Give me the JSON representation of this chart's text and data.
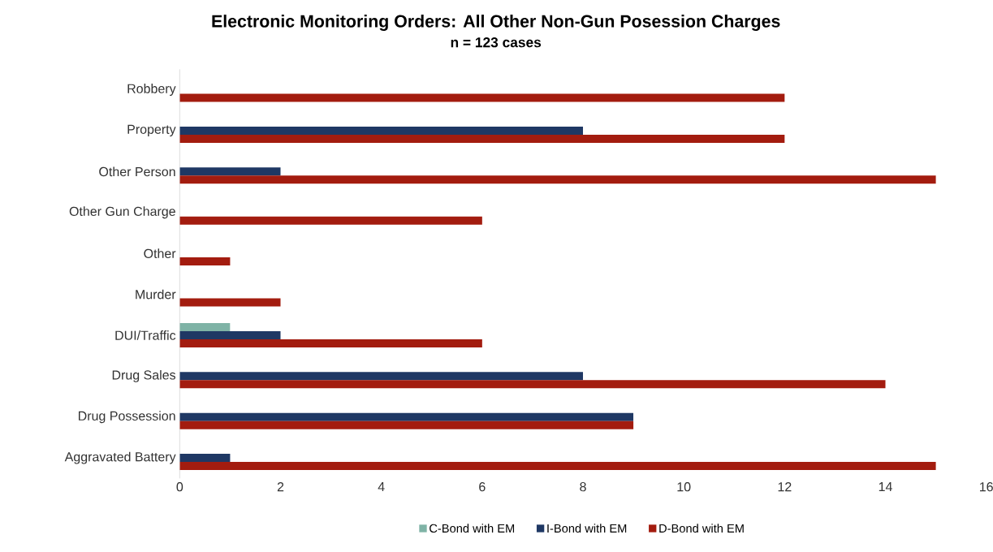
{
  "chart_data": {
    "type": "bar",
    "orientation": "horizontal",
    "title": "Electronic Monitoring Orders: All Other Non-Gun Posession Charges",
    "subtitle": "n = 123 cases",
    "categories": [
      "Robbery",
      "Property",
      "Other Person",
      "Other Gun Charge",
      "Other",
      "Murder",
      "DUI/Traffic",
      "Drug Sales",
      "Drug Possession",
      "Aggravated Battery"
    ],
    "series": [
      {
        "name": "C-Bond with EM",
        "color": "#7fb3a6",
        "values": [
          0,
          0,
          0,
          0,
          0,
          0,
          1,
          0,
          0,
          0
        ]
      },
      {
        "name": "I-Bond with EM",
        "color": "#1f3864",
        "values": [
          0,
          8,
          2,
          0,
          0,
          0,
          2,
          8,
          9,
          1
        ]
      },
      {
        "name": "D-Bond with EM",
        "color": "#a31c0f",
        "values": [
          12,
          12,
          15,
          6,
          1,
          2,
          6,
          14,
          9,
          15
        ]
      }
    ],
    "xlim": [
      0,
      16
    ],
    "xticks": [
      0,
      2,
      4,
      6,
      8,
      10,
      12,
      14,
      16
    ],
    "grid": false,
    "legend": "bottom"
  }
}
